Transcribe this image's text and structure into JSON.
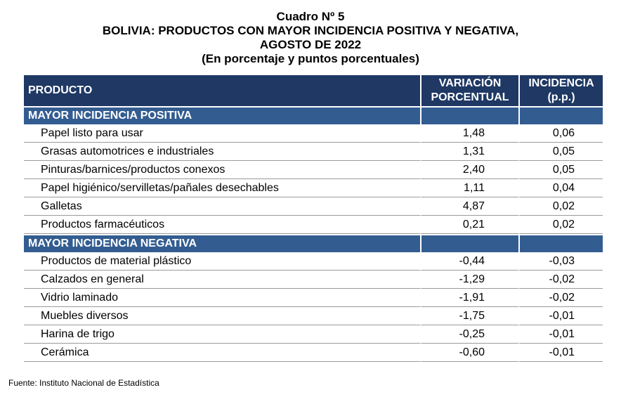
{
  "title": {
    "line1": "Cuadro Nº 5",
    "line2": "BOLIVIA: PRODUCTOS CON MAYOR INCIDENCIA POSITIVA Y NEGATIVA,",
    "line3": "AGOSTO DE 2022",
    "line4": "(En porcentaje y puntos porcentuales)"
  },
  "columns": {
    "producto": "PRODUCTO",
    "variacion_1": "VARIACIÓN",
    "variacion_2": "PORCENTUAL",
    "incidencia_1": "INCIDENCIA",
    "incidencia_2": "(p.p.)"
  },
  "sections": [
    {
      "label": "MAYOR INCIDENCIA POSITIVA",
      "rows": [
        {
          "producto": "Papel listo para usar",
          "variacion": "1,48",
          "incidencia": "0,06"
        },
        {
          "producto": "Grasas automotrices e industriales",
          "variacion": "1,31",
          "incidencia": "0,05"
        },
        {
          "producto": "Pinturas/barnices/productos conexos",
          "variacion": "2,40",
          "incidencia": "0,05"
        },
        {
          "producto": "Papel higiénico/servilletas/pañales desechables",
          "variacion": "1,11",
          "incidencia": "0,04"
        },
        {
          "producto": "Galletas",
          "variacion": "4,87",
          "incidencia": "0,02"
        },
        {
          "producto": "Productos farmacéuticos",
          "variacion": "0,21",
          "incidencia": "0,02"
        }
      ]
    },
    {
      "label": "MAYOR INCIDENCIA NEGATIVA",
      "rows": [
        {
          "producto": "Productos de material plástico",
          "variacion": "-0,44",
          "incidencia": "-0,03"
        },
        {
          "producto": "Calzados en general",
          "variacion": "-1,29",
          "incidencia": "-0,02"
        },
        {
          "producto": "Vidrio laminado",
          "variacion": "-1,91",
          "incidencia": "-0,02"
        },
        {
          "producto": "Muebles diversos",
          "variacion": "-1,75",
          "incidencia": "-0,01"
        },
        {
          "producto": "Harina de trigo",
          "variacion": "-0,25",
          "incidencia": "-0,01"
        },
        {
          "producto": "Cerámica",
          "variacion": "-0,60",
          "incidencia": "-0,01"
        }
      ]
    }
  ],
  "source": "Fuente: Instituto Nacional de Estadística"
}
